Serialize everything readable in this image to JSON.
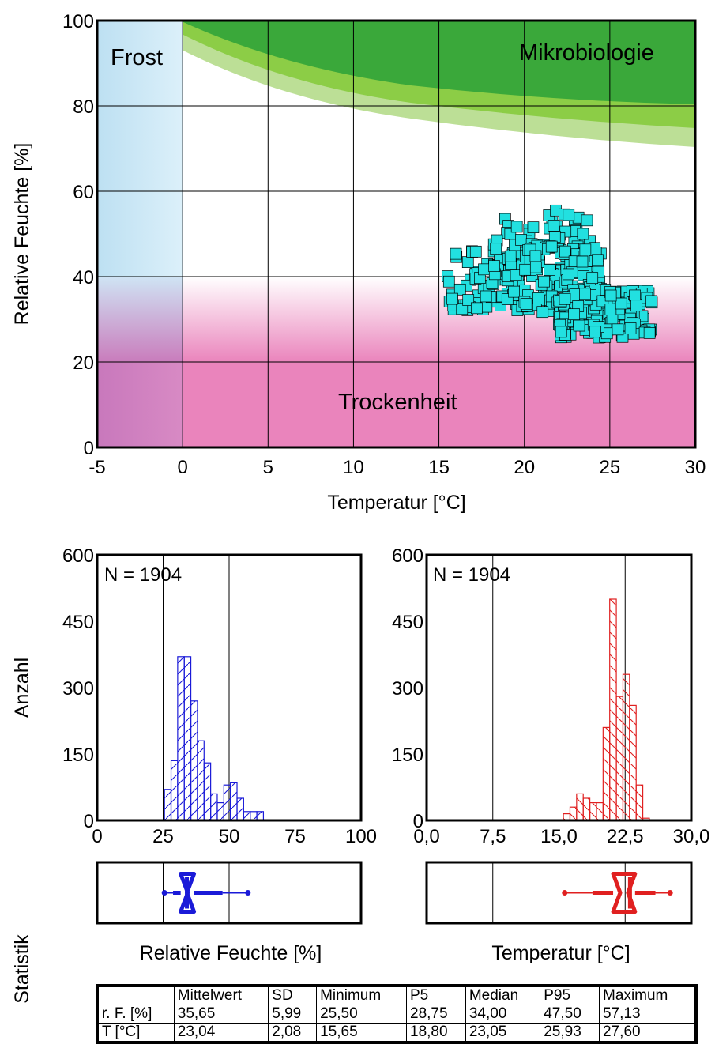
{
  "chart_data": [
    {
      "type": "scatter",
      "xlabel": "Temperatur [°C]",
      "ylabel": "Relative Feuchte [%]",
      "xlim": [
        -5,
        30
      ],
      "ylim": [
        0,
        100
      ],
      "xticks": [
        -5,
        0,
        5,
        10,
        15,
        20,
        25,
        30
      ],
      "yticks": [
        0,
        20,
        40,
        60,
        80,
        100
      ],
      "grid": true,
      "zones": [
        {
          "label": "Frost",
          "color": "#bfe0f2"
        },
        {
          "label": "Mikrobiologie",
          "color": "#3aa83a"
        },
        {
          "label": "Trockenheit",
          "color": "#ea84bc"
        }
      ],
      "marker_color": "#22e0e0",
      "clusters": [
        {
          "x_range": [
            15.5,
            20.5
          ],
          "y_range": [
            32,
            46
          ],
          "n": 90
        },
        {
          "x_range": [
            18,
            24
          ],
          "y_range": [
            40,
            56
          ],
          "n": 80
        },
        {
          "x_range": [
            20,
            24.5
          ],
          "y_range": [
            30,
            48
          ],
          "n": 120
        },
        {
          "x_range": [
            22,
            27.5
          ],
          "y_range": [
            25.5,
            37
          ],
          "n": 150
        }
      ]
    },
    {
      "type": "bar",
      "title": "N = 1904",
      "xlabel": "Relative Feuchte [%]",
      "ylabel": "Anzahl",
      "xlim": [
        0,
        100
      ],
      "ylim": [
        0,
        600
      ],
      "xticks": [
        "0",
        "25",
        "50",
        "75",
        "100"
      ],
      "yticks": [
        "0",
        "150",
        "300",
        "450",
        "600"
      ],
      "color": "#1a1ad8",
      "bin_start": 25.5,
      "bin_width": 2.5,
      "values": [
        70,
        135,
        370,
        370,
        270,
        180,
        130,
        60,
        40,
        80,
        85,
        50,
        20,
        20,
        20
      ],
      "boxplot": {
        "min": 25.5,
        "p5": 28.75,
        "median": 34.0,
        "p95": 47.5,
        "max": 57.13,
        "mean": 35.65
      }
    },
    {
      "type": "bar",
      "title": "N = 1904",
      "xlabel": "Temperatur [°C]",
      "ylabel": "Anzahl",
      "xlim": [
        0,
        30
      ],
      "ylim": [
        0,
        600
      ],
      "xticks": [
        "0,0",
        "7,5",
        "15,0",
        "22,5",
        "30,0"
      ],
      "yticks": [
        "0",
        "150",
        "300",
        "450",
        "600"
      ],
      "color": "#e02020",
      "bin_start": 15.5,
      "bin_width": 0.75,
      "values": [
        15,
        30,
        60,
        50,
        40,
        40,
        210,
        500,
        280,
        330,
        260,
        80,
        5
      ],
      "boxplot": {
        "min": 15.65,
        "p5": 18.8,
        "median": 23.05,
        "p95": 25.93,
        "max": 27.6,
        "mean": 23.04
      }
    }
  ],
  "labels": {
    "statistik": "Statistik"
  },
  "stats_table": {
    "headers": [
      "",
      "Mittelwert",
      "SD",
      "Minimum",
      "P5",
      "Median",
      "P95",
      "Maximum"
    ],
    "rows": [
      [
        "r. F. [%]",
        "35,65",
        "5,99",
        "25,50",
        "28,75",
        "34,00",
        "47,50",
        "57,13"
      ],
      [
        "T [°C]",
        "23,04",
        "2,08",
        "15,65",
        "18,80",
        "23,05",
        "25,93",
        "27,60"
      ]
    ]
  }
}
